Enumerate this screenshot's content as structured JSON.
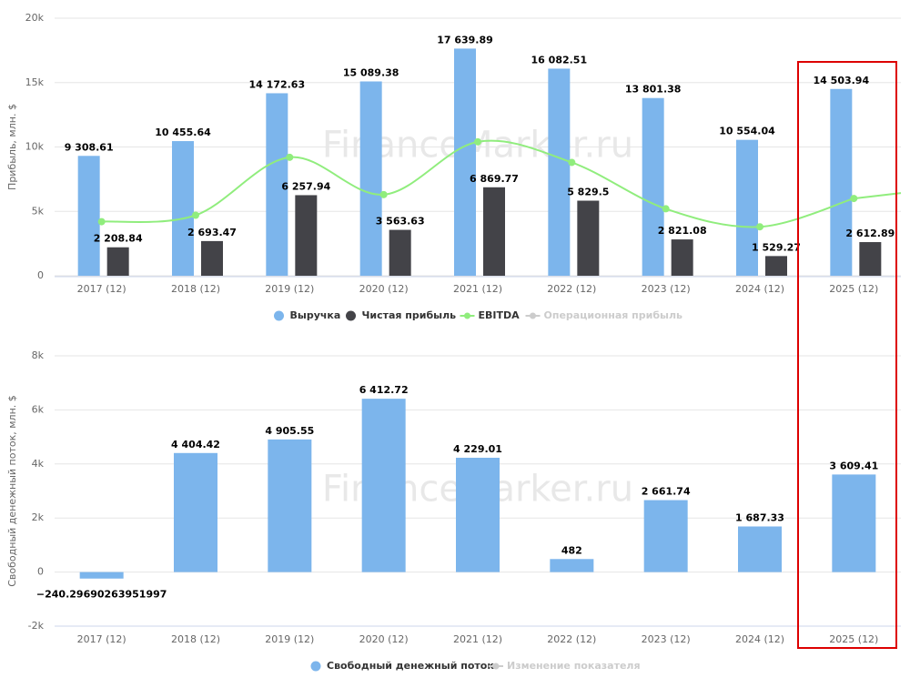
{
  "chart_data": [
    {
      "type": "bar",
      "y_label": "Прибыль, млн. $",
      "watermark": "FinanceMarker.ru",
      "categories": [
        "2017 (12)",
        "2018 (12)",
        "2019 (12)",
        "2020 (12)",
        "2021 (12)",
        "2022 (12)",
        "2023 (12)",
        "2024 (12)",
        "2025 (12)"
      ],
      "ylim": [
        0,
        20000
      ],
      "yticks": [
        0,
        {
          "value": 5000,
          "label": "5k"
        },
        {
          "value": 10000,
          "label": "10k"
        },
        {
          "value": 15000,
          "label": "15k"
        },
        {
          "value": 20000,
          "label": "20k"
        }
      ],
      "grid": true,
      "series": [
        {
          "name": "Выручка",
          "type": "bar",
          "color": "#7cb5ec",
          "values": [
            9308.61,
            10455.64,
            14172.63,
            15089.38,
            17639.89,
            16082.51,
            13801.38,
            10554.04,
            14503.94
          ],
          "value_labels": [
            "9 308.61",
            "10 455.64",
            "14 172.63",
            "15 089.38",
            "17 639.89",
            "16 082.51",
            "13 801.38",
            "10 554.04",
            "14 503.94"
          ]
        },
        {
          "name": "Чистая прибыль",
          "type": "bar",
          "color": "#434348",
          "values": [
            2208.84,
            2693.47,
            6257.94,
            3563.63,
            6869.77,
            5829.5,
            2821.08,
            1529.27,
            2612.89
          ],
          "value_labels": [
            "2 208.84",
            "2 693.47",
            "6 257.94",
            "3 563.63",
            "6 869.77",
            "5 829.5",
            "2 821.08",
            "1 529.27",
            "2 612.89"
          ]
        },
        {
          "name": "EBITDA",
          "type": "line",
          "color": "#90ed7d",
          "values": [
            4200,
            4700,
            9200,
            6300,
            10400,
            8800,
            5200,
            3800,
            6000
          ]
        },
        {
          "name": "Операционная прибыль",
          "type": "line",
          "color": "#cccccc",
          "visible": false,
          "values": [
            null,
            null,
            null,
            null,
            null,
            null,
            null,
            null,
            null
          ]
        }
      ]
    },
    {
      "type": "bar",
      "y_label": "Свободный денежный поток, млн. $",
      "watermark": "FinanceMarker.ru",
      "categories": [
        "2017 (12)",
        "2018 (12)",
        "2019 (12)",
        "2020 (12)",
        "2021 (12)",
        "2022 (12)",
        "2023 (12)",
        "2024 (12)",
        "2025 (12)"
      ],
      "ylim": [
        -2000,
        8000
      ],
      "yticks": [
        {
          "value": -2000,
          "label": "-2k"
        },
        0,
        {
          "value": 2000,
          "label": "2k"
        },
        {
          "value": 4000,
          "label": "4k"
        },
        {
          "value": 6000,
          "label": "6k"
        },
        {
          "value": 8000,
          "label": "8k"
        }
      ],
      "grid": true,
      "series": [
        {
          "name": "Свободный денежный поток",
          "type": "bar",
          "color": "#7cb5ec",
          "values": [
            -240.29690263951997,
            4404.42,
            4905.55,
            6412.72,
            4229.01,
            482,
            2661.74,
            1687.33,
            3609.41
          ],
          "value_labels": [
            "−240.29690263951997",
            "4 404.42",
            "4 905.55",
            "6 412.72",
            "4 229.01",
            "482",
            "2 661.74",
            "1 687.33",
            "3 609.41"
          ]
        },
        {
          "name": "Изменение показателя",
          "type": "line",
          "color": "#cccccc",
          "visible": false,
          "values": [
            null,
            null,
            null,
            null,
            null,
            null,
            null,
            null,
            null
          ]
        }
      ]
    }
  ]
}
